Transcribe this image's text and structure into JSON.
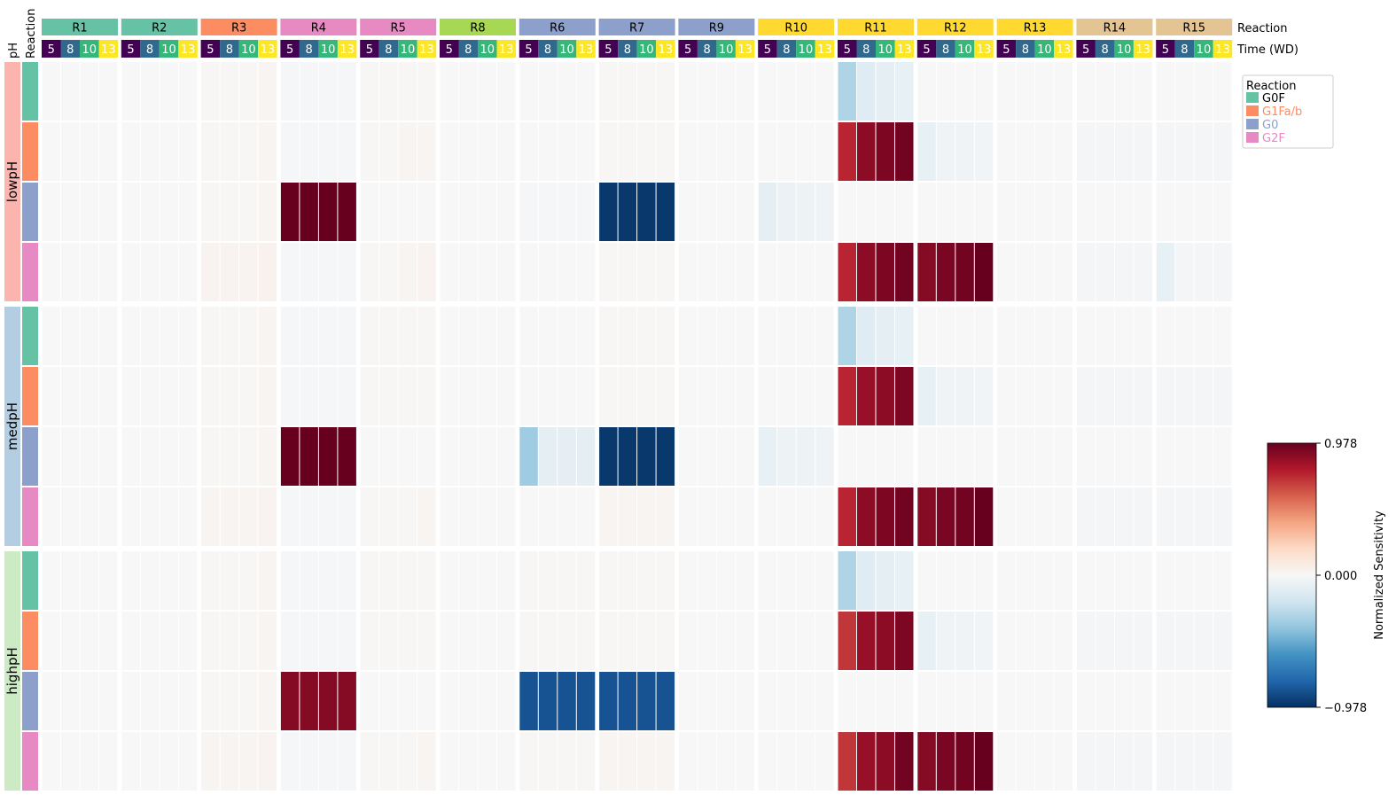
{
  "chart_data": {
    "type": "heatmap",
    "title": "",
    "columns": {
      "reactions": [
        "R1",
        "R2",
        "R3",
        "R4",
        "R5",
        "R8",
        "R6",
        "R7",
        "R9",
        "R10",
        "R11",
        "R12",
        "R13",
        "R14",
        "R15"
      ],
      "times": [
        "5",
        "8",
        "10",
        "13"
      ],
      "reaction_colors": {
        "R1": "#66c2a5",
        "R2": "#66c2a5",
        "R3": "#fc8d62",
        "R4": "#e78ac3",
        "R5": "#e78ac3",
        "R8": "#a6d854",
        "R6": "#8da0cb",
        "R7": "#8da0cb",
        "R9": "#8da0cb",
        "R10": "#ffd92f",
        "R11": "#ffd92f",
        "R12": "#ffd92f",
        "R13": "#ffd92f",
        "R14": "#e5c494",
        "R15": "#e5c494"
      },
      "time_colors": {
        "5": "#440154",
        "8": "#31688e",
        "10": "#35b779",
        "13": "#fde725"
      },
      "reaction_row_label": "Reaction",
      "time_row_label": "Time (WD)"
    },
    "rows": {
      "ph_header": "pH",
      "reaction_header": "Reaction",
      "ph_groups": [
        {
          "name": "lowpH",
          "color": "#fbb4ae"
        },
        {
          "name": "medpH",
          "color": "#b3cde3"
        },
        {
          "name": "highpH",
          "color": "#ccebc5"
        }
      ],
      "species": [
        "G0F",
        "G1Fa/b",
        "G0",
        "G2F"
      ],
      "species_colors": [
        "#66c2a5",
        "#fc8d62",
        "#8da0cb",
        "#e78ac3"
      ]
    },
    "legend": {
      "title": "Reaction",
      "placement": "top-right",
      "entries": [
        {
          "label": "G0F",
          "color": "#66c2a5",
          "text_color": "#000000"
        },
        {
          "label": "G1Fa/b",
          "color": "#fc8d62",
          "text_color": "#fc8d62"
        },
        {
          "label": "G0",
          "color": "#8da0cb",
          "text_color": "#8da0cb"
        },
        {
          "label": "G2F",
          "color": "#e78ac3",
          "text_color": "#e78ac3"
        }
      ]
    },
    "colorbar": {
      "label": "Normalized Sensitivity",
      "vmin": -0.978,
      "vmax": 0.978,
      "ticks": [
        "0.978",
        "0.000",
        "−0.978"
      ],
      "colormap": "RdBu_r"
    },
    "values": [
      [
        0,
        0,
        0,
        0,
        0,
        0,
        0,
        0,
        0.01,
        0.01,
        0.01,
        0.02,
        -0.01,
        -0.01,
        -0.01,
        -0.01,
        0.01,
        0.01,
        0.01,
        0.01,
        0,
        0,
        0,
        0,
        0,
        0,
        0,
        0,
        0.01,
        0.01,
        0.01,
        0.01,
        0,
        0,
        0,
        0,
        0,
        0,
        0,
        0,
        -0.3,
        -0.12,
        -0.1,
        -0.08,
        0,
        0,
        0,
        0,
        0,
        0,
        0,
        0,
        0,
        0,
        0,
        0,
        0,
        0,
        0,
        0
      ],
      [
        0,
        0,
        0,
        0,
        0,
        0,
        0,
        0,
        0.01,
        0.01,
        0.01,
        0.02,
        -0.01,
        -0.01,
        -0.01,
        -0.01,
        0.01,
        0.01,
        0.02,
        0.02,
        0,
        0,
        0,
        0,
        0,
        0,
        0,
        0,
        0.01,
        0.01,
        0.01,
        0.01,
        0,
        0,
        0,
        0,
        0,
        0,
        0,
        0,
        0.75,
        0.88,
        0.92,
        0.95,
        -0.08,
        -0.04,
        -0.04,
        -0.03,
        0,
        0,
        0,
        0,
        -0.02,
        -0.02,
        -0.02,
        -0.02,
        -0.02,
        -0.02,
        -0.02,
        -0.02
      ],
      [
        0,
        0,
        0,
        0,
        0,
        0,
        0,
        0,
        0.01,
        0.01,
        0.01,
        0.02,
        0.978,
        0.978,
        0.978,
        0.978,
        0,
        0,
        0,
        0,
        0,
        0,
        0,
        0,
        -0.01,
        -0.01,
        -0.01,
        -0.01,
        -0.95,
        -0.95,
        -0.95,
        -0.95,
        0,
        0,
        0,
        0,
        -0.1,
        -0.06,
        -0.05,
        -0.04,
        0,
        0,
        0,
        0,
        0,
        0,
        0,
        0,
        0,
        0,
        0,
        0,
        0,
        0,
        0,
        0,
        0,
        0,
        0,
        0
      ],
      [
        0,
        0,
        0,
        0,
        0,
        0,
        0,
        0,
        0.03,
        0.03,
        0.03,
        0.04,
        -0.01,
        -0.01,
        -0.01,
        -0.01,
        0.01,
        0.01,
        0.02,
        0.03,
        0,
        0,
        0,
        0,
        0,
        0,
        0,
        0,
        0.01,
        0.01,
        0.01,
        0.01,
        0,
        0,
        0,
        0,
        0,
        0,
        0,
        0,
        0.75,
        0.88,
        0.92,
        0.95,
        0.9,
        0.93,
        0.95,
        0.978,
        0,
        0,
        0,
        0,
        -0.02,
        -0.02,
        -0.02,
        -0.02,
        -0.08,
        -0.02,
        -0.02,
        -0.02
      ],
      [
        0,
        0,
        0,
        0,
        0,
        0,
        0,
        0,
        0.01,
        0.01,
        0.01,
        0.02,
        -0.01,
        -0.01,
        -0.01,
        -0.01,
        0.01,
        0.01,
        0.01,
        0.01,
        0,
        0,
        0,
        0,
        0,
        0,
        0,
        0,
        0.01,
        0.01,
        0.01,
        0.01,
        0,
        0,
        0,
        0,
        0,
        0,
        0,
        0,
        -0.3,
        -0.12,
        -0.1,
        -0.08,
        0,
        0,
        0,
        0,
        0,
        0,
        0,
        0,
        0,
        0,
        0,
        0,
        0,
        0,
        0,
        0
      ],
      [
        0,
        0,
        0,
        0,
        0,
        0,
        0,
        0,
        0.01,
        0.01,
        0.01,
        0.02,
        -0.01,
        -0.01,
        -0.01,
        -0.01,
        0.01,
        0.01,
        0.01,
        0.01,
        0,
        0,
        0,
        0,
        0,
        0,
        0,
        0,
        0.01,
        0.01,
        0.01,
        0.01,
        0,
        0,
        0,
        0,
        0,
        0,
        0,
        0,
        0.75,
        0.85,
        0.88,
        0.92,
        -0.08,
        -0.04,
        -0.04,
        -0.03,
        0,
        0,
        0,
        0,
        -0.02,
        -0.02,
        -0.02,
        -0.02,
        -0.02,
        -0.02,
        -0.02,
        -0.02
      ],
      [
        0,
        0,
        0,
        0,
        0,
        0,
        0,
        0,
        0.01,
        0.01,
        0.01,
        0.02,
        0.978,
        0.978,
        0.978,
        0.978,
        0,
        0,
        0,
        0,
        0,
        0,
        0,
        0,
        -0.35,
        -0.1,
        -0.1,
        -0.1,
        -0.95,
        -0.95,
        -0.95,
        -0.95,
        0,
        0,
        0,
        0,
        -0.08,
        -0.05,
        -0.05,
        -0.04,
        0,
        0,
        0,
        0,
        0,
        0,
        0,
        0,
        0,
        0,
        0,
        0,
        0,
        0,
        0,
        0,
        0,
        0,
        0,
        0
      ],
      [
        0,
        0,
        0,
        0,
        0,
        0,
        0,
        0,
        0.02,
        0.02,
        0.02,
        0.03,
        -0.01,
        -0.01,
        -0.01,
        -0.01,
        0.01,
        0.01,
        0.01,
        0.02,
        0,
        0,
        0,
        0,
        0,
        0,
        0,
        0,
        0.02,
        0.02,
        0.02,
        0.02,
        0,
        0,
        0,
        0,
        0,
        0,
        0,
        0,
        0.75,
        0.88,
        0.92,
        0.95,
        0.9,
        0.93,
        0.95,
        0.978,
        0,
        0,
        0,
        0,
        -0.02,
        -0.02,
        -0.02,
        -0.02,
        -0.02,
        -0.02,
        -0.02,
        -0.02
      ],
      [
        0,
        0,
        0,
        0,
        0,
        0,
        0,
        0,
        0.01,
        0.01,
        0.01,
        0.02,
        -0.01,
        -0.01,
        -0.01,
        -0.01,
        0.01,
        0.01,
        0.01,
        0.01,
        0,
        0,
        0,
        0,
        0.01,
        0.01,
        0.01,
        0.01,
        0.01,
        0.01,
        0.01,
        0.01,
        0,
        0,
        0,
        0,
        0,
        0,
        0,
        0,
        -0.3,
        -0.12,
        -0.1,
        -0.08,
        0,
        0,
        0,
        0,
        0,
        0,
        0,
        0,
        0,
        0,
        0,
        0,
        0,
        0,
        0,
        0
      ],
      [
        0,
        0,
        0,
        0,
        0,
        0,
        0,
        0,
        0.01,
        0.01,
        0.01,
        0.02,
        -0.01,
        -0.01,
        -0.01,
        -0.01,
        0.01,
        0.01,
        0.01,
        0.01,
        0,
        0,
        0,
        0,
        0.01,
        0.01,
        0.01,
        0.01,
        0.01,
        0.01,
        0.01,
        0.01,
        0,
        0,
        0,
        0,
        0,
        0,
        0,
        0,
        0.7,
        0.85,
        0.88,
        0.92,
        -0.08,
        -0.04,
        -0.04,
        -0.03,
        0,
        0,
        0,
        0,
        -0.02,
        -0.02,
        -0.02,
        -0.02,
        -0.02,
        -0.02,
        -0.02,
        -0.02
      ],
      [
        0,
        0,
        0,
        0,
        0,
        0,
        0,
        0,
        0.01,
        0.01,
        0.01,
        0.02,
        0.9,
        0.9,
        0.9,
        0.9,
        0,
        0,
        0,
        0,
        0,
        0,
        0,
        0,
        -0.85,
        -0.85,
        -0.85,
        -0.85,
        -0.85,
        -0.85,
        -0.85,
        -0.85,
        0,
        0,
        0,
        0,
        0,
        0,
        0,
        0,
        0,
        0,
        0,
        0,
        0,
        0,
        0,
        0,
        0,
        0,
        0,
        0,
        0,
        0,
        0,
        0,
        0,
        0,
        0,
        0
      ],
      [
        0,
        0,
        0,
        0,
        0,
        0,
        0,
        0,
        0.02,
        0.02,
        0.02,
        0.03,
        -0.01,
        -0.01,
        -0.01,
        -0.01,
        0.01,
        0.01,
        0.01,
        0.02,
        0,
        0,
        0,
        0,
        0.01,
        0.01,
        0.01,
        0.01,
        0.02,
        0.02,
        0.02,
        0.02,
        0,
        0,
        0,
        0,
        0,
        0,
        0,
        0,
        0.7,
        0.85,
        0.88,
        0.95,
        0.9,
        0.93,
        0.95,
        0.978,
        0,
        0,
        0,
        0,
        -0.02,
        -0.02,
        -0.02,
        -0.02,
        -0.02,
        -0.02,
        -0.02,
        -0.02
      ]
    ]
  }
}
